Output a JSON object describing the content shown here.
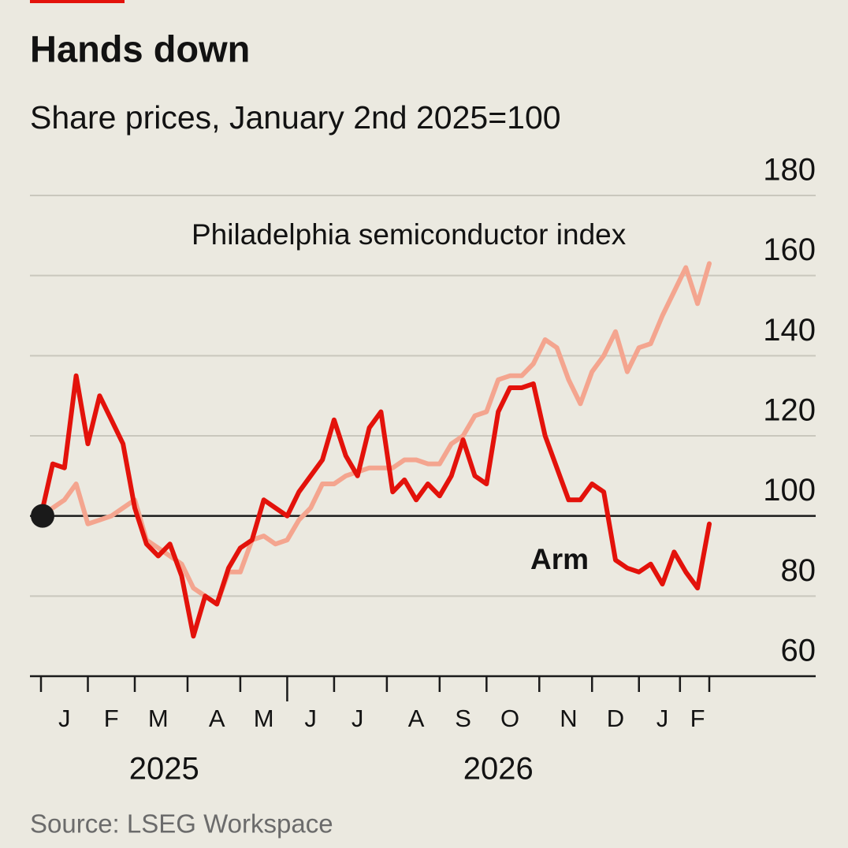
{
  "chart_data": {
    "type": "line",
    "title": "Hands down",
    "subtitle": "Share prices, January 2nd 2025=100",
    "source": "Source: LSEG Workspace",
    "x": [
      null,
      null,
      "J",
      null,
      null,
      null,
      "F",
      null,
      null,
      null,
      "M",
      null,
      null,
      null,
      null,
      "A",
      null,
      null,
      null,
      "M",
      null,
      null,
      null,
      "J",
      null,
      null,
      null,
      "J",
      null,
      null,
      null,
      null,
      "A",
      null,
      null,
      null,
      "S",
      null,
      null,
      null,
      "O",
      null,
      null,
      null,
      null,
      "N",
      null,
      null,
      null,
      "D",
      null,
      null,
      null,
      "J",
      null,
      null,
      "F",
      null
    ],
    "x_group_labels": [
      "2025",
      "2026"
    ],
    "ylim": [
      60,
      180
    ],
    "yticks": [
      60,
      80,
      100,
      120,
      140,
      160,
      180
    ],
    "baseline": 100,
    "grid": true,
    "series": [
      {
        "name": "Arm",
        "color": "#e3120b",
        "values": [
          100,
          113,
          112,
          135,
          118,
          130,
          124,
          118,
          102,
          93,
          90,
          93,
          85,
          70,
          80,
          78,
          87,
          92,
          94,
          104,
          102,
          100,
          106,
          110,
          114,
          124,
          115,
          110,
          122,
          126,
          106,
          109,
          104,
          108,
          105,
          110,
          119,
          110,
          108,
          126,
          132,
          132,
          133,
          120,
          112,
          104,
          104,
          108,
          106,
          89,
          87,
          86,
          88,
          83,
          91,
          86,
          82,
          98
        ]
      },
      {
        "name": "Philadelphia semiconductor index",
        "color": "#f4a58f",
        "values": [
          100,
          102,
          104,
          108,
          98,
          99,
          100,
          102,
          104,
          94,
          92,
          90,
          88,
          82,
          80,
          78,
          86,
          86,
          94,
          95,
          93,
          94,
          99,
          102,
          108,
          108,
          110,
          111,
          112,
          112,
          112,
          114,
          114,
          113,
          113,
          118,
          120,
          125,
          126,
          134,
          135,
          135,
          138,
          144,
          142,
          134,
          128,
          136,
          140,
          146,
          136,
          142,
          143,
          150,
          156,
          162,
          153,
          163
        ]
      }
    ]
  }
}
